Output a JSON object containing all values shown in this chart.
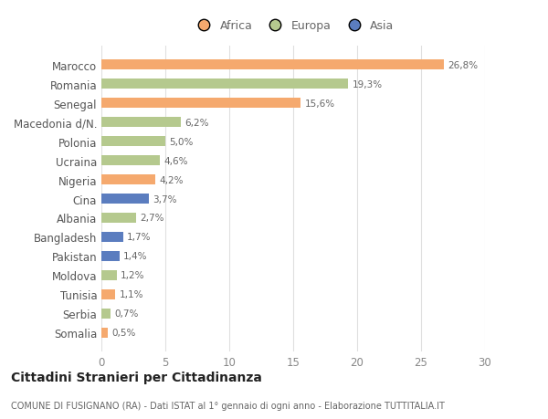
{
  "countries": [
    "Somalia",
    "Serbia",
    "Tunisia",
    "Moldova",
    "Pakistan",
    "Bangladesh",
    "Albania",
    "Cina",
    "Nigeria",
    "Ucraina",
    "Polonia",
    "Macedonia d/N.",
    "Senegal",
    "Romania",
    "Marocco"
  ],
  "values": [
    0.5,
    0.7,
    1.1,
    1.2,
    1.4,
    1.7,
    2.7,
    3.7,
    4.2,
    4.6,
    5.0,
    6.2,
    15.6,
    19.3,
    26.8
  ],
  "labels": [
    "0,5%",
    "0,7%",
    "1,1%",
    "1,2%",
    "1,4%",
    "1,7%",
    "2,7%",
    "3,7%",
    "4,2%",
    "4,6%",
    "5,0%",
    "6,2%",
    "15,6%",
    "19,3%",
    "26,8%"
  ],
  "continents": [
    "Africa",
    "Europa",
    "Africa",
    "Europa",
    "Asia",
    "Asia",
    "Europa",
    "Asia",
    "Africa",
    "Europa",
    "Europa",
    "Europa",
    "Africa",
    "Europa",
    "Africa"
  ],
  "colors": {
    "Africa": "#F5A96E",
    "Europa": "#B5C98E",
    "Asia": "#5B7DBF"
  },
  "legend_labels": [
    "Africa",
    "Europa",
    "Asia"
  ],
  "legend_colors": [
    "#F5A96E",
    "#B5C98E",
    "#5B7DBF"
  ],
  "title": "Cittadini Stranieri per Cittadinanza",
  "subtitle": "COMUNE DI FUSIGNANO (RA) - Dati ISTAT al 1° gennaio di ogni anno - Elaborazione TUTTITALIA.IT",
  "xlim": [
    0,
    30
  ],
  "xticks": [
    0,
    5,
    10,
    15,
    20,
    25,
    30
  ],
  "bg_color": "#ffffff",
  "grid_color": "#e0e0e0",
  "bar_height": 0.55
}
